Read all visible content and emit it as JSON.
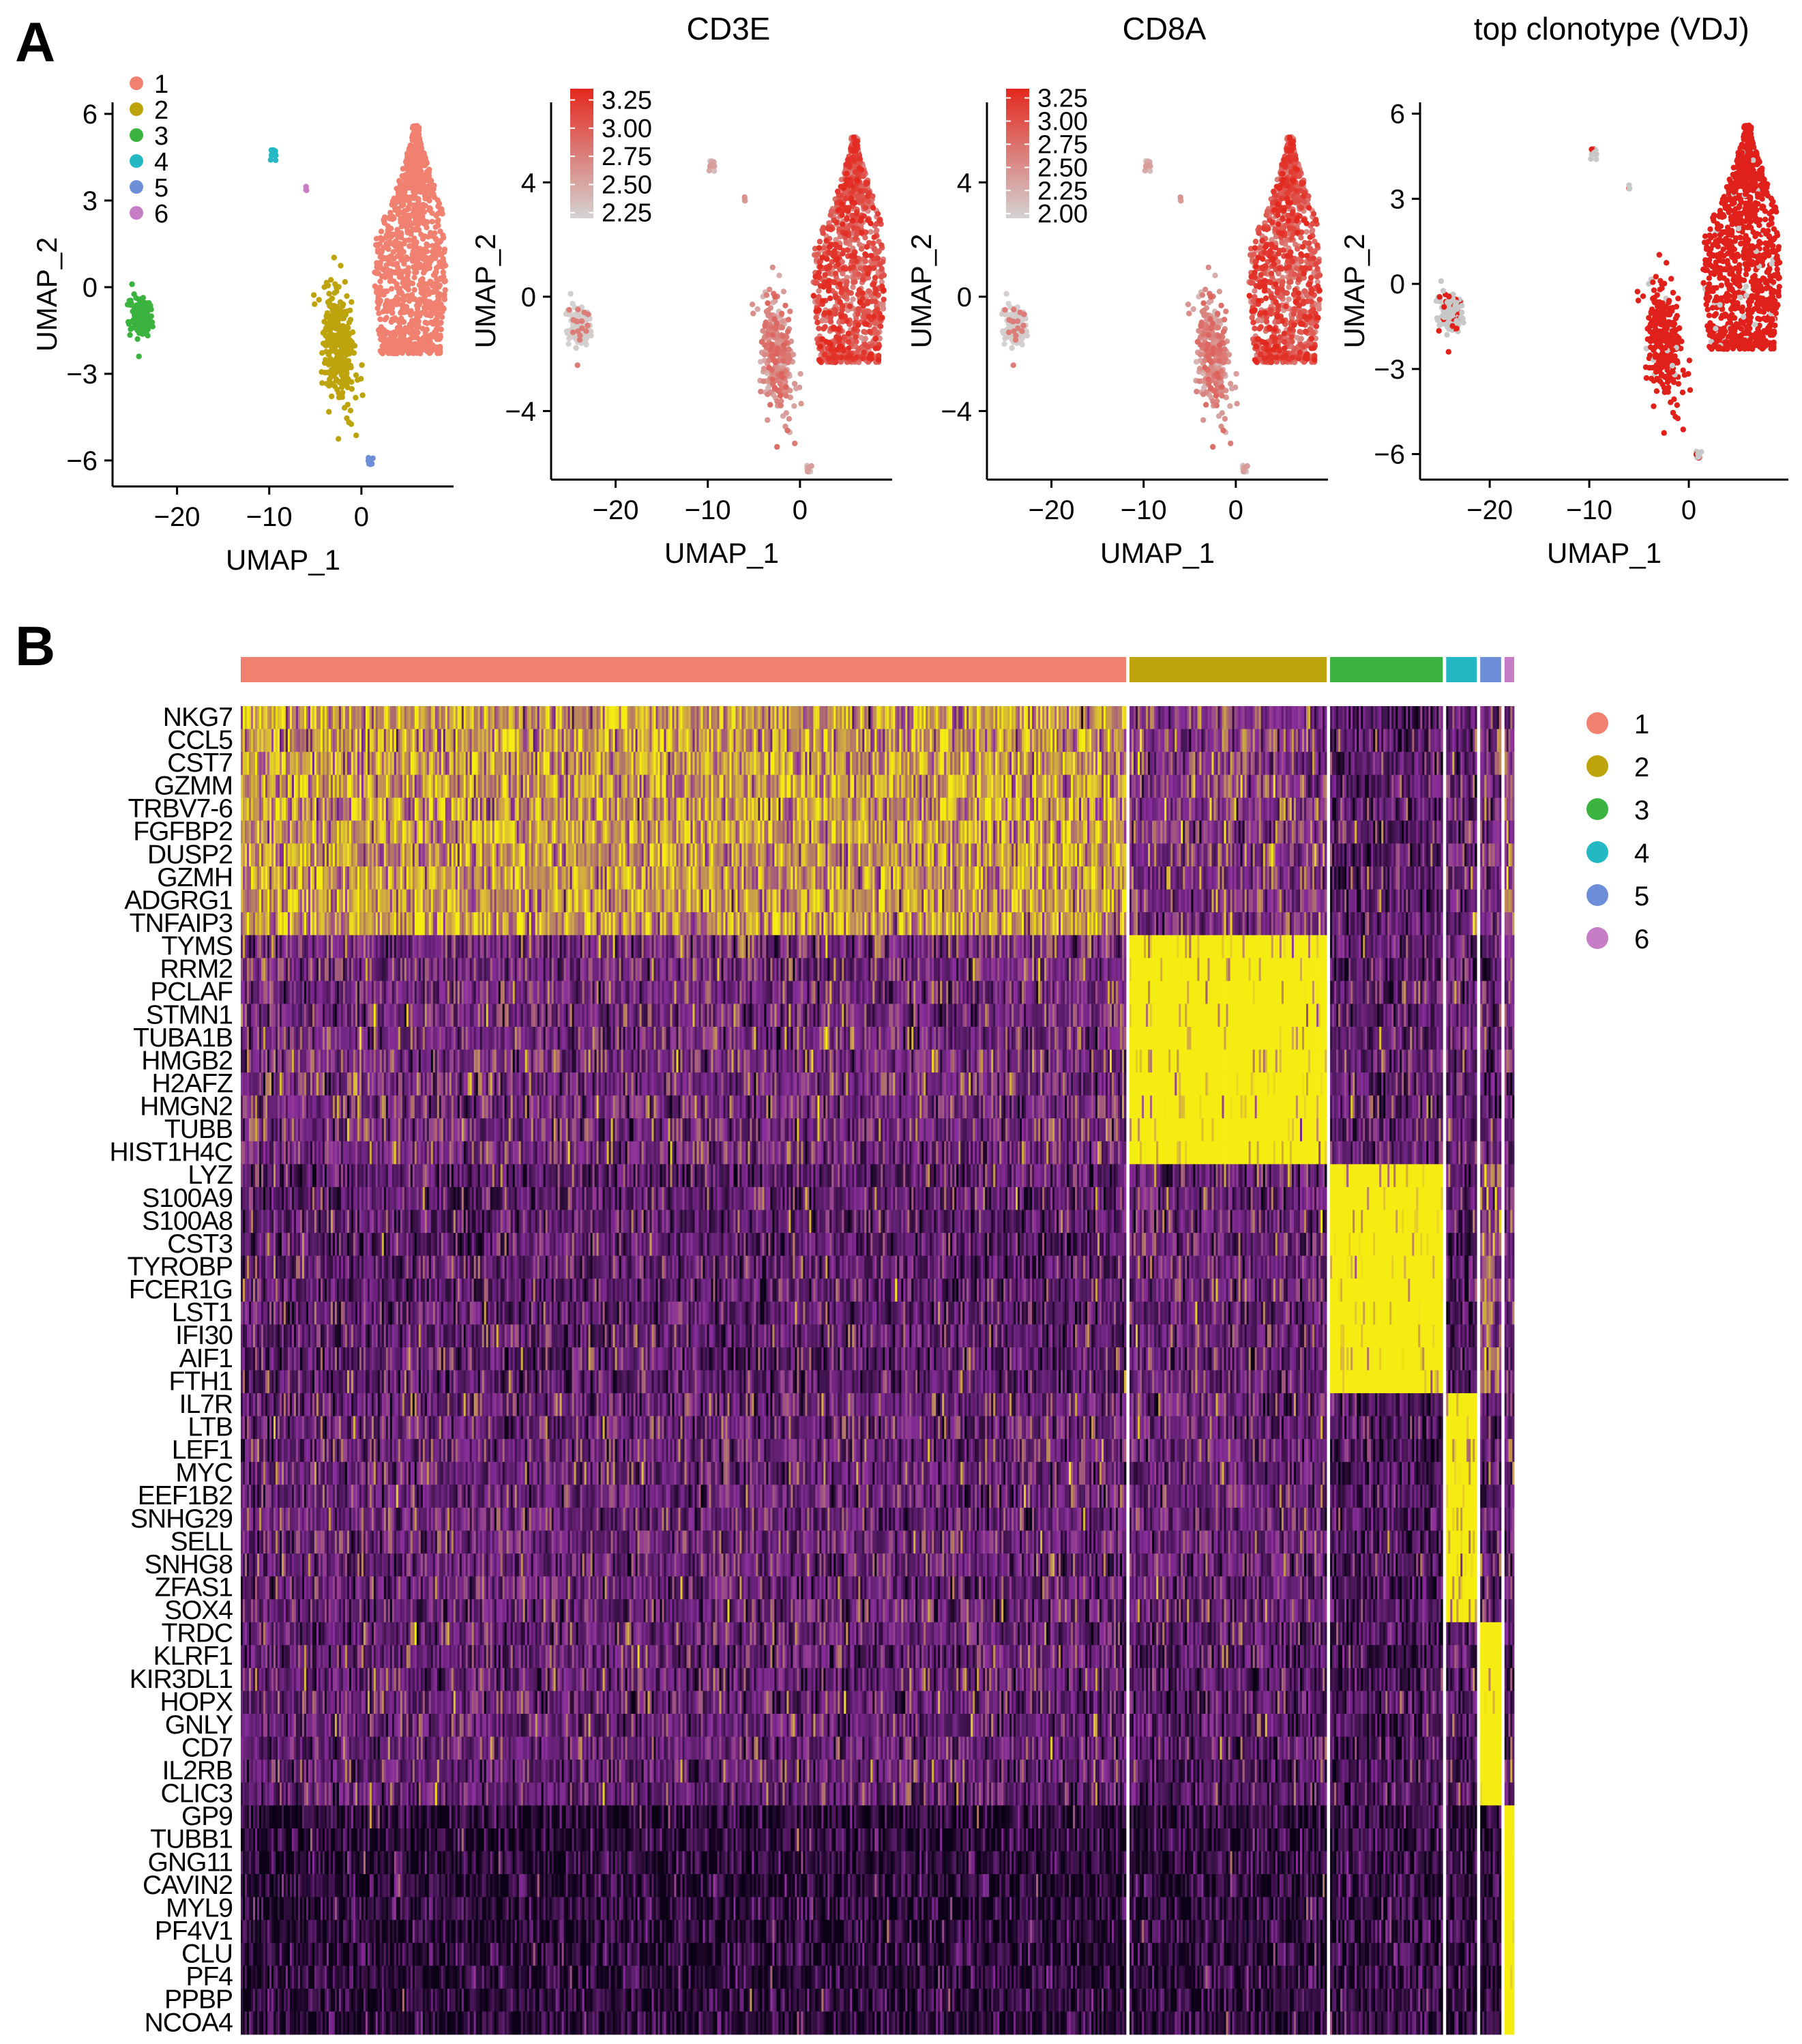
{
  "panel_labels": [
    "A",
    "B"
  ],
  "colors": {
    "clusters": [
      "#F08070",
      "#BEA40C",
      "#3BB33F",
      "#23B8C4",
      "#6E8FD8",
      "#C77CC6"
    ],
    "feature_low": "#D3D3D3",
    "feature_high": "#E3281E",
    "vdj_top": "#E0201A",
    "vdj_other": "#C8C8C8",
    "heat_low": "#0B0016",
    "heat_mid": "#8A2F9C",
    "heat_high": "#F5EC12"
  },
  "chart_data": [
    {
      "type": "scatter",
      "title": "",
      "xlabel": "UMAP_1",
      "ylabel": "UMAP_2",
      "xticks": [
        "−20",
        "−10",
        "0"
      ],
      "yticks": [
        "6",
        "3",
        "0",
        "−3",
        "−6"
      ],
      "xlim": [
        -27,
        10
      ],
      "ylim": [
        -6.9,
        6.4
      ],
      "legend": {
        "position": "top-left",
        "entries": [
          "1",
          "2",
          "3",
          "4",
          "5",
          "6"
        ]
      },
      "clusters": [
        {
          "name": "1",
          "n": 1100,
          "cx": 5.3,
          "cy": 0.3,
          "sx": 2.2,
          "sy": 2.0,
          "top": 5.6,
          "bottom": -2.3
        },
        {
          "name": "2",
          "n": 300,
          "cx": -2.5,
          "cy": -2.0,
          "sx": 0.9,
          "sy": 1.0
        },
        {
          "name": "3",
          "n": 160,
          "cx": -24.0,
          "cy": -1.0,
          "sx": 0.55,
          "sy": 0.35
        },
        {
          "name": "4",
          "n": 18,
          "cx": -9.6,
          "cy": 4.6,
          "sx": 0.18,
          "sy": 0.12
        },
        {
          "name": "5",
          "n": 14,
          "cx": 0.9,
          "cy": -6.0,
          "sx": 0.14,
          "sy": 0.14
        },
        {
          "name": "6",
          "n": 4,
          "cx": -6.0,
          "cy": 3.4,
          "sx": 0.05,
          "sy": 0.06
        }
      ]
    },
    {
      "type": "scatter",
      "title": "CD3E",
      "xlabel": "UMAP_1",
      "ylabel": "UMAP_2",
      "xticks": [
        "−20",
        "−10",
        "0"
      ],
      "yticks": [
        "4",
        "0",
        "−4"
      ],
      "xlim": [
        -27,
        10
      ],
      "ylim": [
        -6.4,
        6.8
      ],
      "legend": {
        "position": "top-left",
        "type": "colorbar",
        "labels": [
          "3.25",
          "3.00",
          "2.75",
          "2.50",
          "2.25"
        ],
        "range": [
          2.2,
          3.35
        ]
      }
    },
    {
      "type": "scatter",
      "title": "CD8A",
      "xlabel": "UMAP_1",
      "ylabel": "UMAP_2",
      "xticks": [
        "−20",
        "−10",
        "0"
      ],
      "yticks": [
        "4",
        "0",
        "−4"
      ],
      "xlim": [
        -27,
        10
      ],
      "ylim": [
        -6.4,
        6.8
      ],
      "legend": {
        "position": "top-left",
        "type": "colorbar",
        "labels": [
          "3.25",
          "3.00",
          "2.75",
          "2.50",
          "2.25",
          "2.00"
        ],
        "range": [
          1.95,
          3.35
        ]
      }
    },
    {
      "type": "scatter",
      "title": "top clonotype (VDJ)",
      "xlabel": "UMAP_1",
      "ylabel": "UMAP_2",
      "xticks": [
        "−20",
        "−10",
        "0"
      ],
      "yticks": [
        "6",
        "3",
        "0",
        "−3",
        "−6"
      ],
      "xlim": [
        -27,
        10
      ],
      "ylim": [
        -6.9,
        6.4
      ]
    },
    {
      "type": "heatmap",
      "legend": {
        "position": "right",
        "entries": [
          "1",
          "2",
          "3",
          "4",
          "5",
          "6"
        ]
      },
      "clusters": [
        {
          "name": "1",
          "cells": 1100
        },
        {
          "name": "2",
          "cells": 245
        },
        {
          "name": "3",
          "cells": 140
        },
        {
          "name": "4",
          "cells": 38
        },
        {
          "name": "5",
          "cells": 26
        },
        {
          "name": "6",
          "cells": 12
        }
      ],
      "gene_groups": [
        {
          "cluster": "1",
          "genes": [
            "NKG7",
            "CCL5",
            "CST7",
            "GZMM",
            "TRBV7-6",
            "FGFBP2",
            "DUSP2",
            "GZMH",
            "ADGRG1",
            "TNFAIP3"
          ],
          "mean_expression": [
            1.4,
            -0.1,
            -0.9,
            -0.5,
            -0.3,
            0.4
          ]
        },
        {
          "cluster": "2",
          "genes": [
            "TYMS",
            "RRM2",
            "PCLAF",
            "STMN1",
            "TUBA1B",
            "HMGB2",
            "H2AFZ",
            "HMGN2",
            "TUBB",
            "HIST1H4C"
          ],
          "mean_expression": [
            -0.4,
            2.3,
            -0.8,
            -0.6,
            -0.8,
            -0.4
          ]
        },
        {
          "cluster": "3",
          "genes": [
            "LYZ",
            "S100A9",
            "S100A8",
            "CST3",
            "TYROBP",
            "FCER1G",
            "LST1",
            "IFI30",
            "AIF1",
            "FTH1"
          ],
          "mean_expression": [
            -0.9,
            -0.6,
            2.4,
            -1.1,
            0.6,
            -0.4
          ]
        },
        {
          "cluster": "4",
          "genes": [
            "IL7R",
            "LTB",
            "LEF1",
            "MYC",
            "EEF1B2",
            "SNHG29",
            "SELL",
            "SNHG8",
            "ZFAS1",
            "SOX4"
          ],
          "mean_expression": [
            -0.6,
            -0.6,
            -1.2,
            2.2,
            -0.9,
            -0.7
          ]
        },
        {
          "cluster": "5",
          "genes": [
            "TRDC",
            "KLRF1",
            "KIR3DL1",
            "HOPX",
            "GNLY",
            "CD7",
            "IL2RB",
            "CLIC3"
          ],
          "mean_expression": [
            -0.7,
            -1.0,
            -1.3,
            -1.0,
            2.4,
            -1.0
          ]
        },
        {
          "cluster": "6",
          "genes": [
            "GP9",
            "TUBB1",
            "GNG11",
            "CAVIN2",
            "MYL9",
            "PF4V1",
            "CLU",
            "PF4",
            "PPBP",
            "NCOA4"
          ],
          "mean_expression": [
            -1.9,
            -1.8,
            -1.6,
            -1.9,
            -1.9,
            2.5
          ]
        }
      ]
    }
  ]
}
